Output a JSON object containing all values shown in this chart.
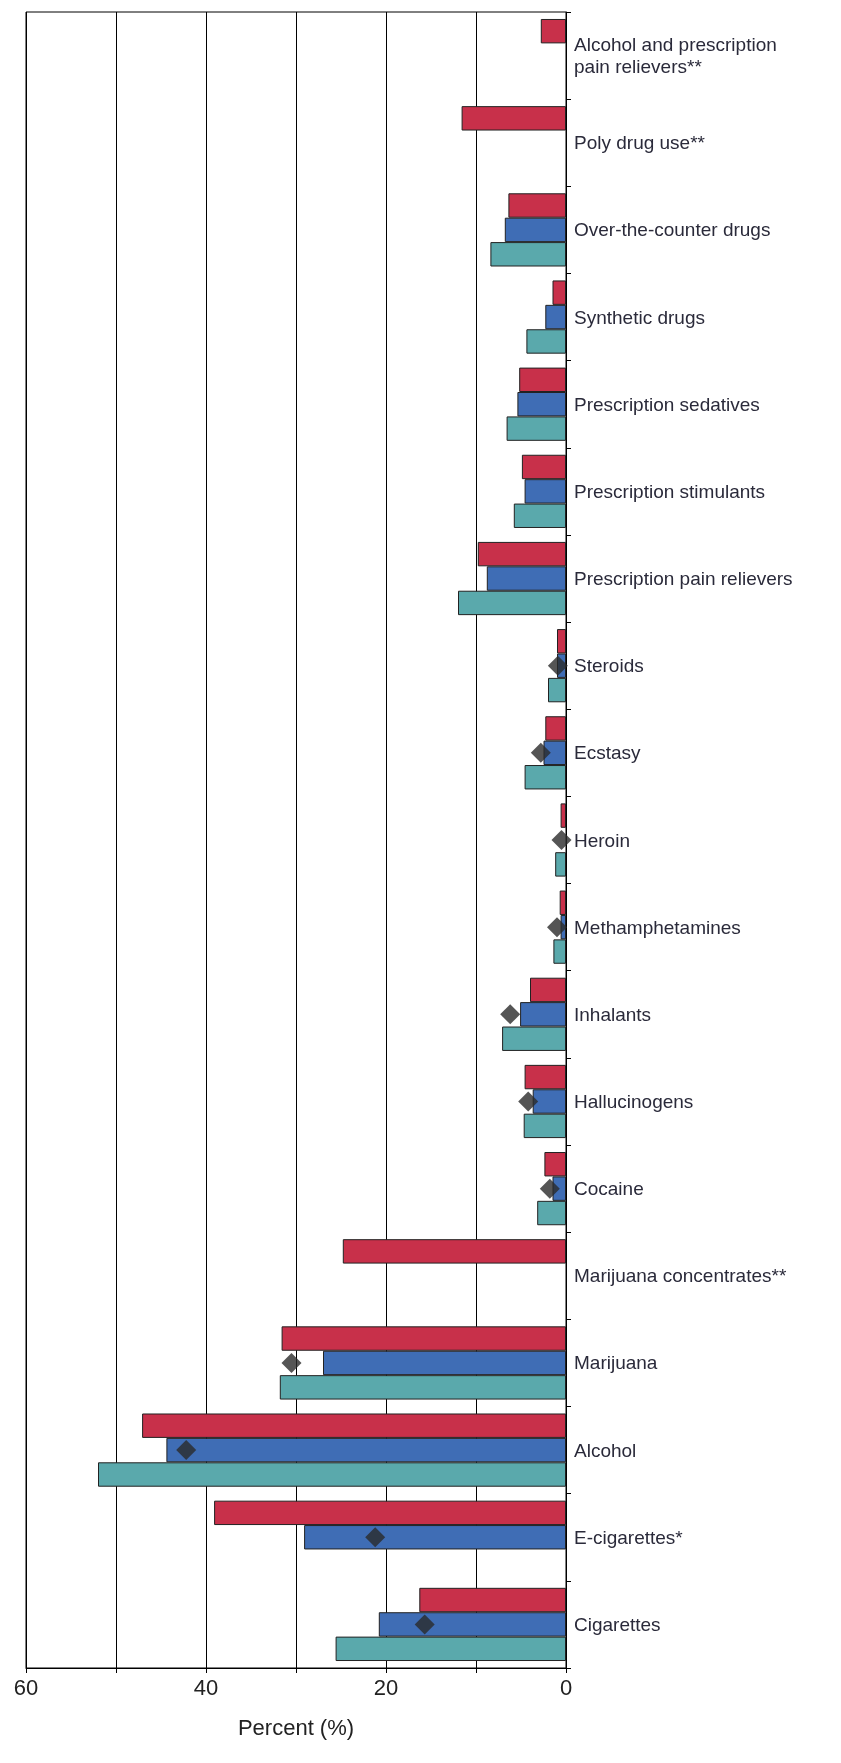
{
  "chart_data": {
    "type": "bar",
    "orientation": "horizontal",
    "xlabel": "Percent (%)",
    "categories": [
      "Alcohol and prescription pain relievers**",
      "Poly drug use**",
      "Over-the-counter drugs",
      "Synthetic drugs",
      "Prescription sedatives",
      "Prescription stimulants",
      "Prescription pain relievers",
      "Steroids",
      "Ecstasy",
      "Heroin",
      "Methamphetamines",
      "Inhalants",
      "Hallucinogens",
      "Cocaine",
      "Marijuana concentrates**",
      "Marijuana",
      "Alcohol",
      "E-cigarettes*",
      "Cigarettes"
    ],
    "series": [
      {
        "color": "#c8304a",
        "values": [
          2.8,
          11.6,
          6.4,
          1.5,
          5.2,
          4.9,
          9.8,
          1.0,
          2.3,
          0.6,
          0.7,
          4.0,
          4.6,
          2.4,
          24.8,
          31.6,
          47.1,
          39.1,
          16.3
        ]
      },
      {
        "color": "#3f6db5",
        "values": [
          null,
          null,
          6.8,
          2.3,
          5.4,
          4.6,
          8.8,
          1.0,
          2.5,
          null,
          0.6,
          5.1,
          3.7,
          1.5,
          null,
          27.0,
          44.4,
          29.1,
          20.8
        ]
      },
      {
        "color": "#5aa9ac",
        "values": [
          null,
          null,
          8.4,
          4.4,
          6.6,
          5.8,
          12.0,
          2.0,
          4.6,
          1.2,
          1.4,
          7.1,
          4.7,
          3.2,
          null,
          31.8,
          52.0,
          null,
          25.6
        ]
      },
      {
        "type": "scatter",
        "color": "#2a2a2a",
        "values": [
          null,
          null,
          null,
          null,
          null,
          null,
          null,
          0.9,
          2.8,
          0.5,
          1.0,
          6.2,
          4.2,
          1.8,
          null,
          30.5,
          42.2,
          21.2,
          15.7
        ]
      }
    ],
    "xlim": [
      60,
      0
    ],
    "xticks": [
      0,
      {
        "value": 10,
        "label": null
      },
      20,
      {
        "value": 30,
        "label": null
      },
      40,
      {
        "value": 50,
        "label": null
      },
      60
    ],
    "grid": "x",
    "marker": "diamond"
  }
}
